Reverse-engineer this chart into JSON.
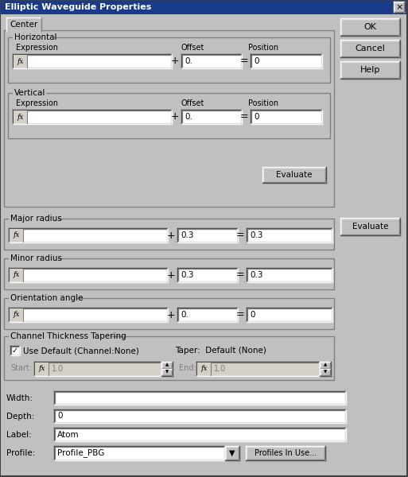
{
  "title": "Elliptic Waveguide Properties",
  "bg_color": "#c0c0c0",
  "title_bar_color": "#1a3a8a",
  "title_text_color": "#ffffff",
  "field_color": "#ffffff",
  "dark_border": "#808080",
  "light_border": "#ffffff",
  "tab_label": "Center",
  "buttons_right": [
    "OK",
    "Cancel",
    "Help"
  ],
  "horiz_label": "Horizontal",
  "vert_label": "Vertical",
  "expr_label": "Expression",
  "offset_label": "Offset",
  "pos_label": "Position",
  "horiz_offset": "0.",
  "horiz_pos": "0",
  "vert_offset": "0.",
  "vert_pos": "0",
  "maj_label": "Major radius",
  "maj_offset": "0.3",
  "maj_pos": "0.3",
  "min_label": "Minor radius",
  "min_offset": "0.3",
  "min_pos": "0.3",
  "ori_label": "Orientation angle",
  "ori_offset": "0.",
  "ori_pos": "0",
  "chan_label": "Channel Thickness Tapering",
  "check_label": "Use Default (Channel:None)",
  "taper_label": "Taper:  Default (None)",
  "start_val": "1.0",
  "end_val": "1.0",
  "width_val": "",
  "depth_val": "0",
  "label_val": "Atom",
  "profile_val": "Profile_PBG",
  "evaluate_label": "Evaluate",
  "profiles_btn": "Profiles In Use...",
  "width_label": "Width:",
  "depth_label": "Depth:",
  "label_label": "Label:",
  "profile_label": "Profile:",
  "start_label": "Start:",
  "end_label": "End:"
}
